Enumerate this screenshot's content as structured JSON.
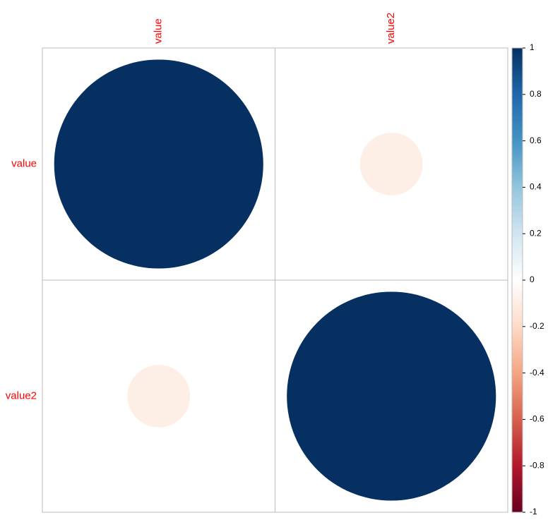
{
  "chart_data": {
    "type": "corrplot",
    "variables": [
      "value",
      "value2"
    ],
    "matrix": [
      [
        1,
        -0.09
      ],
      [
        -0.09,
        1
      ]
    ],
    "zlim": [
      -1,
      1
    ],
    "zticks": [
      -1,
      -0.8,
      -0.6,
      -0.4,
      -0.2,
      0,
      0.2,
      0.4,
      0.6,
      0.8,
      1
    ],
    "colors": [
      "#67001F",
      "#B2182B",
      "#D6604D",
      "#F4A582",
      "#FDDBC7",
      "#FFFFFF",
      "#D1E5F0",
      "#92C5DE",
      "#4393C3",
      "#2166AC",
      "#053061"
    ],
    "label_color": "#FF0000"
  }
}
